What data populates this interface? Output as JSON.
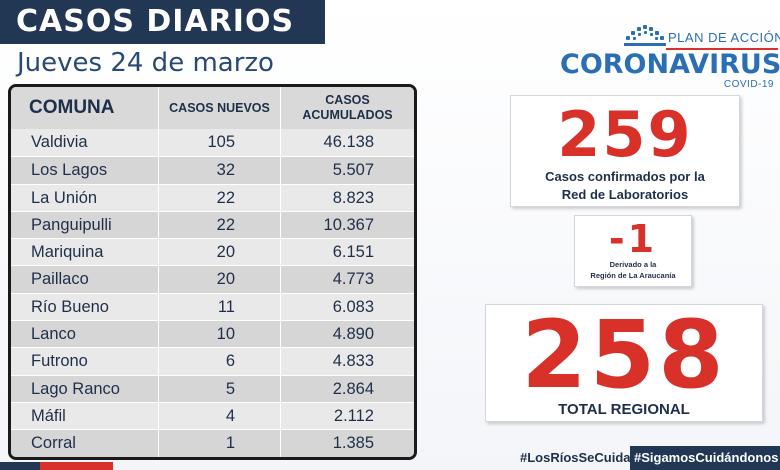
{
  "header": {
    "title": "CASOS DIARIOS",
    "subtitle": "Jueves 24 de marzo"
  },
  "logo": {
    "plan": "PLAN DE ACCIÓN",
    "name": "CORONAVIRUS",
    "covid": "COVID-19"
  },
  "table": {
    "headers": {
      "comuna": "COMUNA",
      "nuevos": "CASOS NUEVOS",
      "acumulados": "CASOS ACUMULADOS"
    },
    "rows": [
      {
        "comuna": "Valdivia",
        "nuevos": "105",
        "acumulados": "46.138"
      },
      {
        "comuna": "Los Lagos",
        "nuevos": "32",
        "acumulados": "5.507"
      },
      {
        "comuna": "La Unión",
        "nuevos": "22",
        "acumulados": "8.823"
      },
      {
        "comuna": "Panguipulli",
        "nuevos": "22",
        "acumulados": "10.367"
      },
      {
        "comuna": "Mariquina",
        "nuevos": "20",
        "acumulados": "6.151"
      },
      {
        "comuna": "Paillaco",
        "nuevos": "20",
        "acumulados": "4.773"
      },
      {
        "comuna": "Río Bueno",
        "nuevos": "11",
        "acumulados": "6.083"
      },
      {
        "comuna": "Lanco",
        "nuevos": "10",
        "acumulados": "4.890"
      },
      {
        "comuna": "Futrono",
        "nuevos": "6",
        "acumulados": "4.833"
      },
      {
        "comuna": "Lago Ranco",
        "nuevos": "5",
        "acumulados": "2.864"
      },
      {
        "comuna": "Máfil",
        "nuevos": "4",
        "acumulados": "2.112"
      },
      {
        "comuna": "Corral",
        "nuevos": "1",
        "acumulados": "1.385"
      }
    ]
  },
  "stats": {
    "confirmados": {
      "value": "259",
      "caption_1": "Casos confirmados  por la",
      "caption_2": "Red de Laboratorios"
    },
    "derivado": {
      "value": "-1",
      "caption_1": "Derivado a la",
      "caption_2": "Región de La Araucanía"
    },
    "total": {
      "value": "258",
      "caption": "TOTAL REGIONAL"
    }
  },
  "footer": {
    "hashtag_1": "#LosRíosSeCuida",
    "hashtag_2": "#SigamosCuidándonos"
  },
  "colors": {
    "navy": "#213754",
    "red": "#d7312a",
    "blue": "#2a6fb3"
  }
}
